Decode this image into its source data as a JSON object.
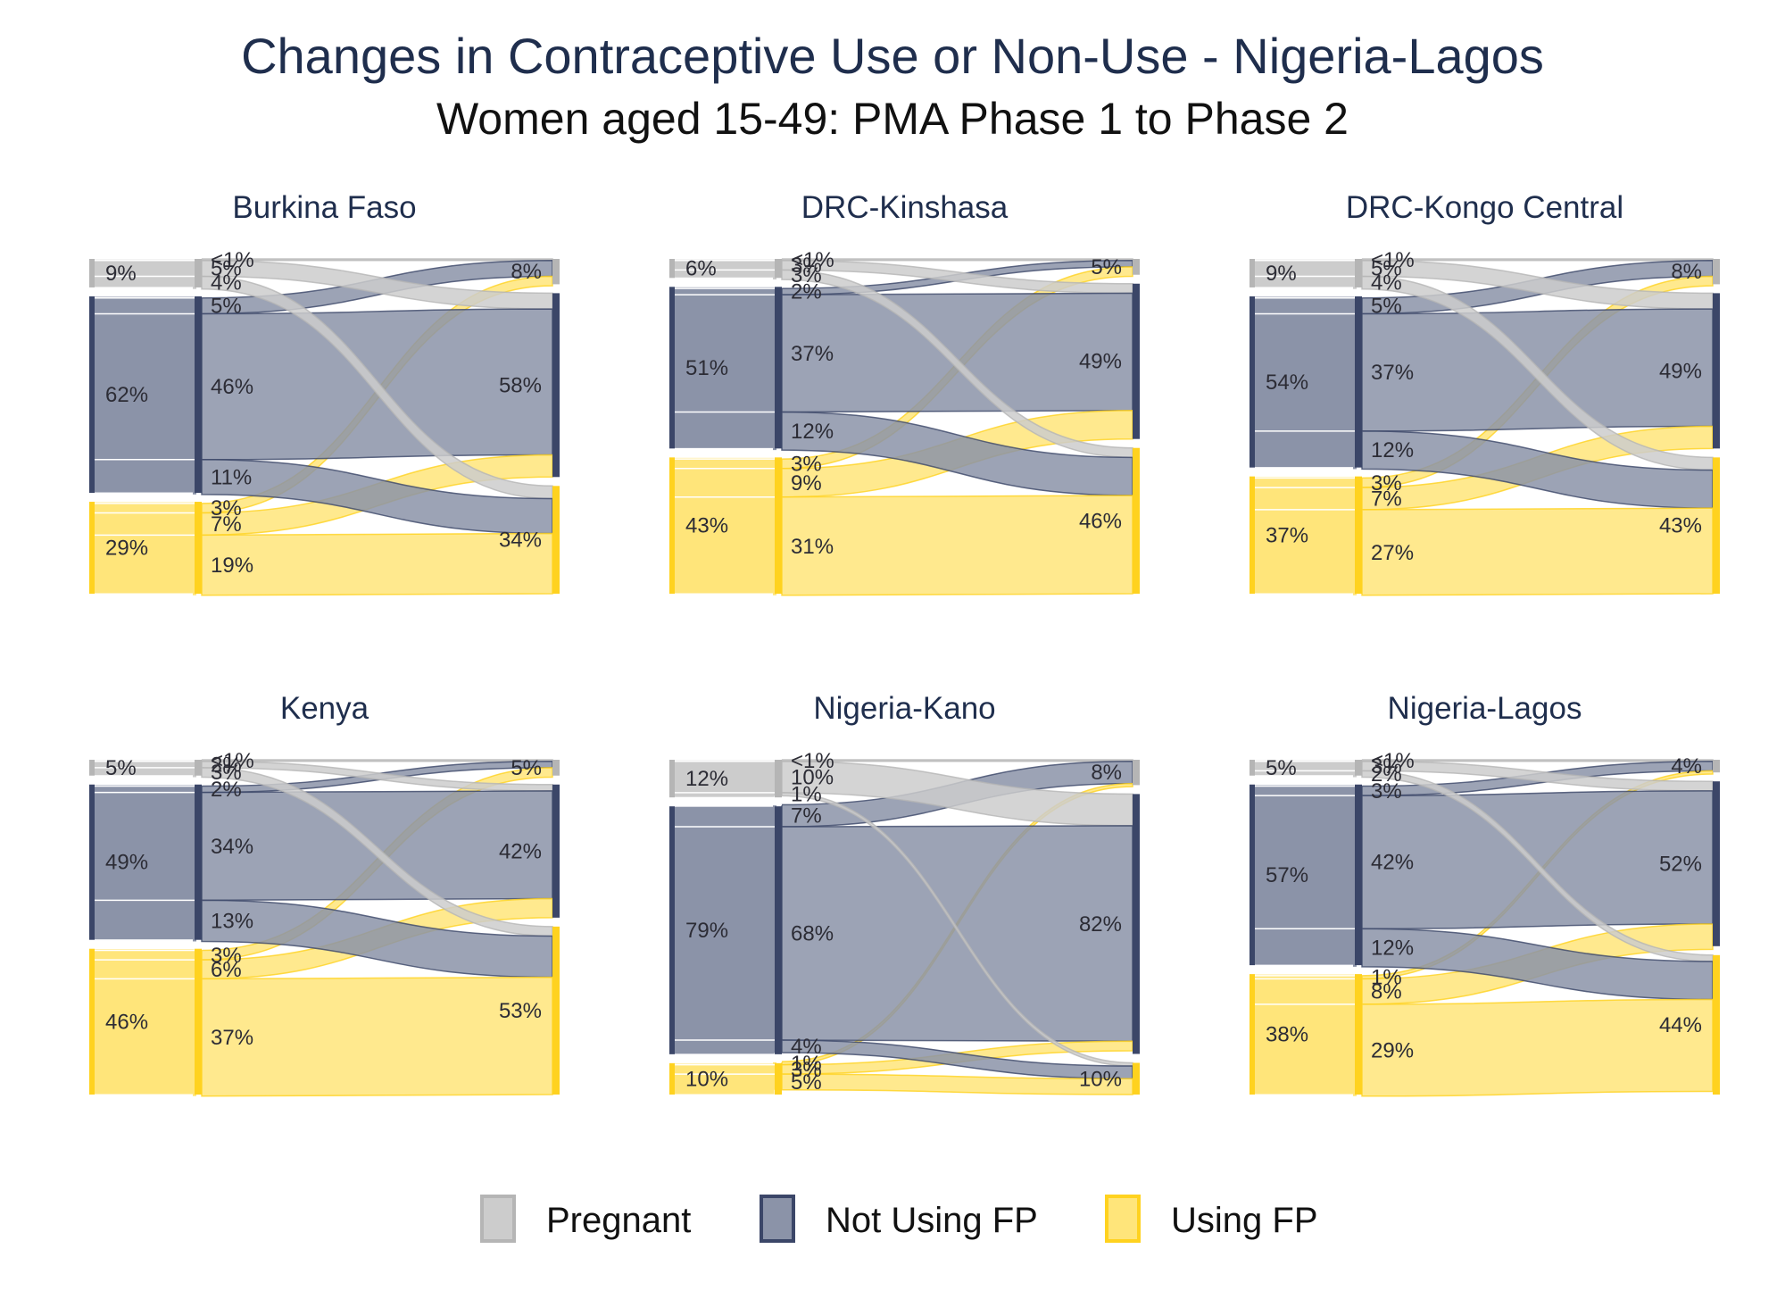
{
  "title": "Changes in Contraceptive Use or Non-Use - Nigeria-Lagos",
  "subtitle": "Women aged 15-49: PMA Phase 1 to Phase 2",
  "colors": {
    "Pregnant": "#cccccc",
    "Not Using FP": "#8b93a8",
    "Using FP": "#ffe57a",
    "Pregnant_dark": "#b5b5b5",
    "Not Using FP_dark": "#3b4668",
    "Using FP_dark": "#ffd21f"
  },
  "legend": [
    {
      "name": "Pregnant",
      "label": "Pregnant"
    },
    {
      "name": "Not Using FP",
      "label": "Not Using FP"
    },
    {
      "name": "Using FP",
      "label": "Using FP"
    }
  ],
  "chart_data": [
    {
      "type": "sankey",
      "title": "Burkina Faso",
      "phase1": [
        {
          "category": "Pregnant",
          "value": 9,
          "label": "9%"
        },
        {
          "category": "Not Using FP",
          "value": 62,
          "label": "62%"
        },
        {
          "category": "Using FP",
          "value": 29,
          "label": "29%"
        }
      ],
      "flows": [
        {
          "from": "Pregnant",
          "to": "Pregnant",
          "value": 0.5,
          "label": "<1%"
        },
        {
          "from": "Pregnant",
          "to": "Not Using FP",
          "value": 5,
          "label": "5%"
        },
        {
          "from": "Pregnant",
          "to": "Using FP",
          "value": 4,
          "label": "4%"
        },
        {
          "from": "Not Using FP",
          "to": "Pregnant",
          "value": 5,
          "label": "5%"
        },
        {
          "from": "Not Using FP",
          "to": "Not Using FP",
          "value": 46,
          "label": "46%"
        },
        {
          "from": "Not Using FP",
          "to": "Using FP",
          "value": 11,
          "label": "11%"
        },
        {
          "from": "Using FP",
          "to": "Pregnant",
          "value": 3,
          "label": "3%"
        },
        {
          "from": "Using FP",
          "to": "Not Using FP",
          "value": 7,
          "label": "7%"
        },
        {
          "from": "Using FP",
          "to": "Using FP",
          "value": 19,
          "label": "19%"
        }
      ],
      "phase2": [
        {
          "category": "Pregnant",
          "value": 8,
          "label": "8%"
        },
        {
          "category": "Not Using FP",
          "value": 58,
          "label": "58%"
        },
        {
          "category": "Using FP",
          "value": 34,
          "label": "34%"
        }
      ]
    },
    {
      "type": "sankey",
      "title": "DRC-Kinshasa",
      "phase1": [
        {
          "category": "Pregnant",
          "value": 6,
          "label": "6%"
        },
        {
          "category": "Not Using FP",
          "value": 51,
          "label": "51%"
        },
        {
          "category": "Using FP",
          "value": 43,
          "label": "43%"
        }
      ],
      "flows": [
        {
          "from": "Pregnant",
          "to": "Pregnant",
          "value": 0.5,
          "label": "<1%"
        },
        {
          "from": "Pregnant",
          "to": "Not Using FP",
          "value": 3,
          "label": "3%"
        },
        {
          "from": "Pregnant",
          "to": "Using FP",
          "value": 3,
          "label": "3%"
        },
        {
          "from": "Not Using FP",
          "to": "Pregnant",
          "value": 2,
          "label": "2%"
        },
        {
          "from": "Not Using FP",
          "to": "Not Using FP",
          "value": 37,
          "label": "37%"
        },
        {
          "from": "Not Using FP",
          "to": "Using FP",
          "value": 12,
          "label": "12%"
        },
        {
          "from": "Using FP",
          "to": "Pregnant",
          "value": 3,
          "label": "3%"
        },
        {
          "from": "Using FP",
          "to": "Not Using FP",
          "value": 9,
          "label": "9%"
        },
        {
          "from": "Using FP",
          "to": "Using FP",
          "value": 31,
          "label": "31%"
        }
      ],
      "phase2": [
        {
          "category": "Pregnant",
          "value": 5,
          "label": "5%"
        },
        {
          "category": "Not Using FP",
          "value": 49,
          "label": "49%"
        },
        {
          "category": "Using FP",
          "value": 46,
          "label": "46%"
        }
      ]
    },
    {
      "type": "sankey",
      "title": "DRC-Kongo Central",
      "phase1": [
        {
          "category": "Pregnant",
          "value": 9,
          "label": "9%"
        },
        {
          "category": "Not Using FP",
          "value": 54,
          "label": "54%"
        },
        {
          "category": "Using FP",
          "value": 37,
          "label": "37%"
        }
      ],
      "flows": [
        {
          "from": "Pregnant",
          "to": "Pregnant",
          "value": 0.5,
          "label": "<1%"
        },
        {
          "from": "Pregnant",
          "to": "Not Using FP",
          "value": 5,
          "label": "5%"
        },
        {
          "from": "Pregnant",
          "to": "Using FP",
          "value": 4,
          "label": "4%"
        },
        {
          "from": "Not Using FP",
          "to": "Pregnant",
          "value": 5,
          "label": "5%"
        },
        {
          "from": "Not Using FP",
          "to": "Not Using FP",
          "value": 37,
          "label": "37%"
        },
        {
          "from": "Not Using FP",
          "to": "Using FP",
          "value": 12,
          "label": "12%"
        },
        {
          "from": "Using FP",
          "to": "Pregnant",
          "value": 3,
          "label": "3%"
        },
        {
          "from": "Using FP",
          "to": "Not Using FP",
          "value": 7,
          "label": "7%"
        },
        {
          "from": "Using FP",
          "to": "Using FP",
          "value": 27,
          "label": "27%"
        }
      ],
      "phase2": [
        {
          "category": "Pregnant",
          "value": 8,
          "label": "8%"
        },
        {
          "category": "Not Using FP",
          "value": 49,
          "label": "49%"
        },
        {
          "category": "Using FP",
          "value": 43,
          "label": "43%"
        }
      ]
    },
    {
      "type": "sankey",
      "title": "Kenya",
      "phase1": [
        {
          "category": "Pregnant",
          "value": 5,
          "label": "5%"
        },
        {
          "category": "Not Using FP",
          "value": 49,
          "label": "49%"
        },
        {
          "category": "Using FP",
          "value": 46,
          "label": "46%"
        }
      ],
      "flows": [
        {
          "from": "Pregnant",
          "to": "Pregnant",
          "value": 0.5,
          "label": "<1%"
        },
        {
          "from": "Pregnant",
          "to": "Not Using FP",
          "value": 2,
          "label": "2%"
        },
        {
          "from": "Pregnant",
          "to": "Using FP",
          "value": 3,
          "label": "3%"
        },
        {
          "from": "Not Using FP",
          "to": "Pregnant",
          "value": 2,
          "label": "2%"
        },
        {
          "from": "Not Using FP",
          "to": "Not Using FP",
          "value": 34,
          "label": "34%"
        },
        {
          "from": "Not Using FP",
          "to": "Using FP",
          "value": 13,
          "label": "13%"
        },
        {
          "from": "Using FP",
          "to": "Pregnant",
          "value": 3,
          "label": "3%"
        },
        {
          "from": "Using FP",
          "to": "Not Using FP",
          "value": 6,
          "label": "6%"
        },
        {
          "from": "Using FP",
          "to": "Using FP",
          "value": 37,
          "label": "37%"
        }
      ],
      "phase2": [
        {
          "category": "Pregnant",
          "value": 5,
          "label": "5%"
        },
        {
          "category": "Not Using FP",
          "value": 42,
          "label": "42%"
        },
        {
          "category": "Using FP",
          "value": 53,
          "label": "53%"
        }
      ]
    },
    {
      "type": "sankey",
      "title": "Nigeria-Kano",
      "phase1": [
        {
          "category": "Pregnant",
          "value": 12,
          "label": "12%"
        },
        {
          "category": "Not Using FP",
          "value": 79,
          "label": "79%"
        },
        {
          "category": "Using FP",
          "value": 10,
          "label": "10%"
        }
      ],
      "flows": [
        {
          "from": "Pregnant",
          "to": "Pregnant",
          "value": 0.5,
          "label": "<1%"
        },
        {
          "from": "Pregnant",
          "to": "Not Using FP",
          "value": 10,
          "label": "10%"
        },
        {
          "from": "Pregnant",
          "to": "Using FP",
          "value": 1,
          "label": "1%"
        },
        {
          "from": "Not Using FP",
          "to": "Pregnant",
          "value": 7,
          "label": "7%"
        },
        {
          "from": "Not Using FP",
          "to": "Not Using FP",
          "value": 68,
          "label": "68%"
        },
        {
          "from": "Not Using FP",
          "to": "Using FP",
          "value": 4,
          "label": "4%"
        },
        {
          "from": "Using FP",
          "to": "Pregnant",
          "value": 1,
          "label": "1%"
        },
        {
          "from": "Using FP",
          "to": "Not Using FP",
          "value": 3,
          "label": "3%"
        },
        {
          "from": "Using FP",
          "to": "Using FP",
          "value": 5,
          "label": "5%"
        }
      ],
      "phase2": [
        {
          "category": "Pregnant",
          "value": 8,
          "label": "8%"
        },
        {
          "category": "Not Using FP",
          "value": 82,
          "label": "82%"
        },
        {
          "category": "Using FP",
          "value": 10,
          "label": "10%"
        }
      ]
    },
    {
      "type": "sankey",
      "title": "Nigeria-Lagos",
      "phase1": [
        {
          "category": "Pregnant",
          "value": 5,
          "label": "5%"
        },
        {
          "category": "Not Using FP",
          "value": 57,
          "label": "57%"
        },
        {
          "category": "Using FP",
          "value": 38,
          "label": "38%"
        }
      ],
      "flows": [
        {
          "from": "Pregnant",
          "to": "Pregnant",
          "value": 0.5,
          "label": "<1%"
        },
        {
          "from": "Pregnant",
          "to": "Not Using FP",
          "value": 3,
          "label": "3%"
        },
        {
          "from": "Pregnant",
          "to": "Using FP",
          "value": 2,
          "label": "2%"
        },
        {
          "from": "Not Using FP",
          "to": "Pregnant",
          "value": 3,
          "label": "3%"
        },
        {
          "from": "Not Using FP",
          "to": "Not Using FP",
          "value": 42,
          "label": "42%"
        },
        {
          "from": "Not Using FP",
          "to": "Using FP",
          "value": 12,
          "label": "12%"
        },
        {
          "from": "Using FP",
          "to": "Pregnant",
          "value": 1,
          "label": "1%"
        },
        {
          "from": "Using FP",
          "to": "Not Using FP",
          "value": 8,
          "label": "8%"
        },
        {
          "from": "Using FP",
          "to": "Using FP",
          "value": 29,
          "label": "29%"
        }
      ],
      "phase2": [
        {
          "category": "Pregnant",
          "value": 4,
          "label": "4%"
        },
        {
          "category": "Not Using FP",
          "value": 52,
          "label": "52%"
        },
        {
          "category": "Using FP",
          "value": 44,
          "label": "44%"
        }
      ]
    }
  ]
}
